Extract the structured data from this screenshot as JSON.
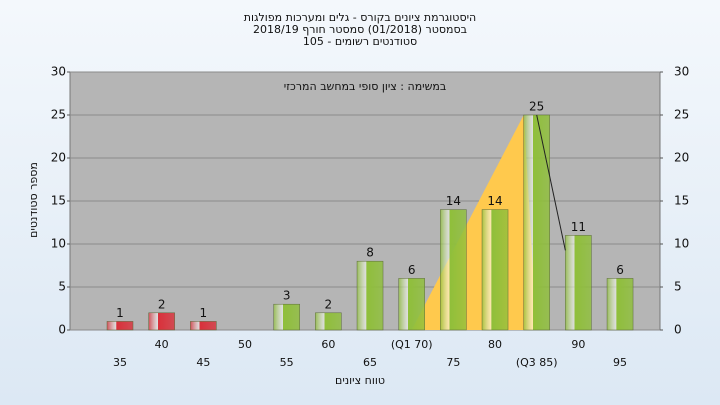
{
  "chart_data": {
    "type": "bar",
    "title": "היסטוגרמת ציונים בקורס - גלים ומערכות מפולגות",
    "subtitle": "בסמסטר  (01/2018)  סמסטר חורף 2018/19",
    "subtitle2": "סטודנטים רשומים - 105",
    "annotation": "במשימה : ציון סופי במחשב המרכזי",
    "x_label": "טווח ציונים",
    "y_label": "מספר סטודנטים",
    "categories": [
      "35",
      "40",
      "45",
      "50",
      "55",
      "60",
      "65",
      "(Q1 70)",
      "75",
      "80",
      "(Q3 85)",
      "90",
      "95"
    ],
    "values": [
      1,
      2,
      1,
      0,
      3,
      2,
      8,
      6,
      14,
      14,
      25,
      11,
      6
    ],
    "colors": [
      "#d9303a",
      "#d9303a",
      "#d9303a",
      "#d9303a",
      "#8fbf3a",
      "#8fbf3a",
      "#8fbf3a",
      "#8fbf3a",
      "#8fbf3a",
      "#8fbf3a",
      "#8fbf3a",
      "#8fbf3a",
      "#8fbf3a"
    ],
    "quartile_color": "#ffc94d",
    "ylim": [
      0,
      30
    ],
    "yticks": [
      0,
      5,
      10,
      15,
      20,
      25,
      30
    ],
    "y2lim": [
      0,
      30
    ],
    "y2ticks": [
      0,
      5,
      10,
      15,
      20,
      25,
      30
    ],
    "grid": true
  }
}
